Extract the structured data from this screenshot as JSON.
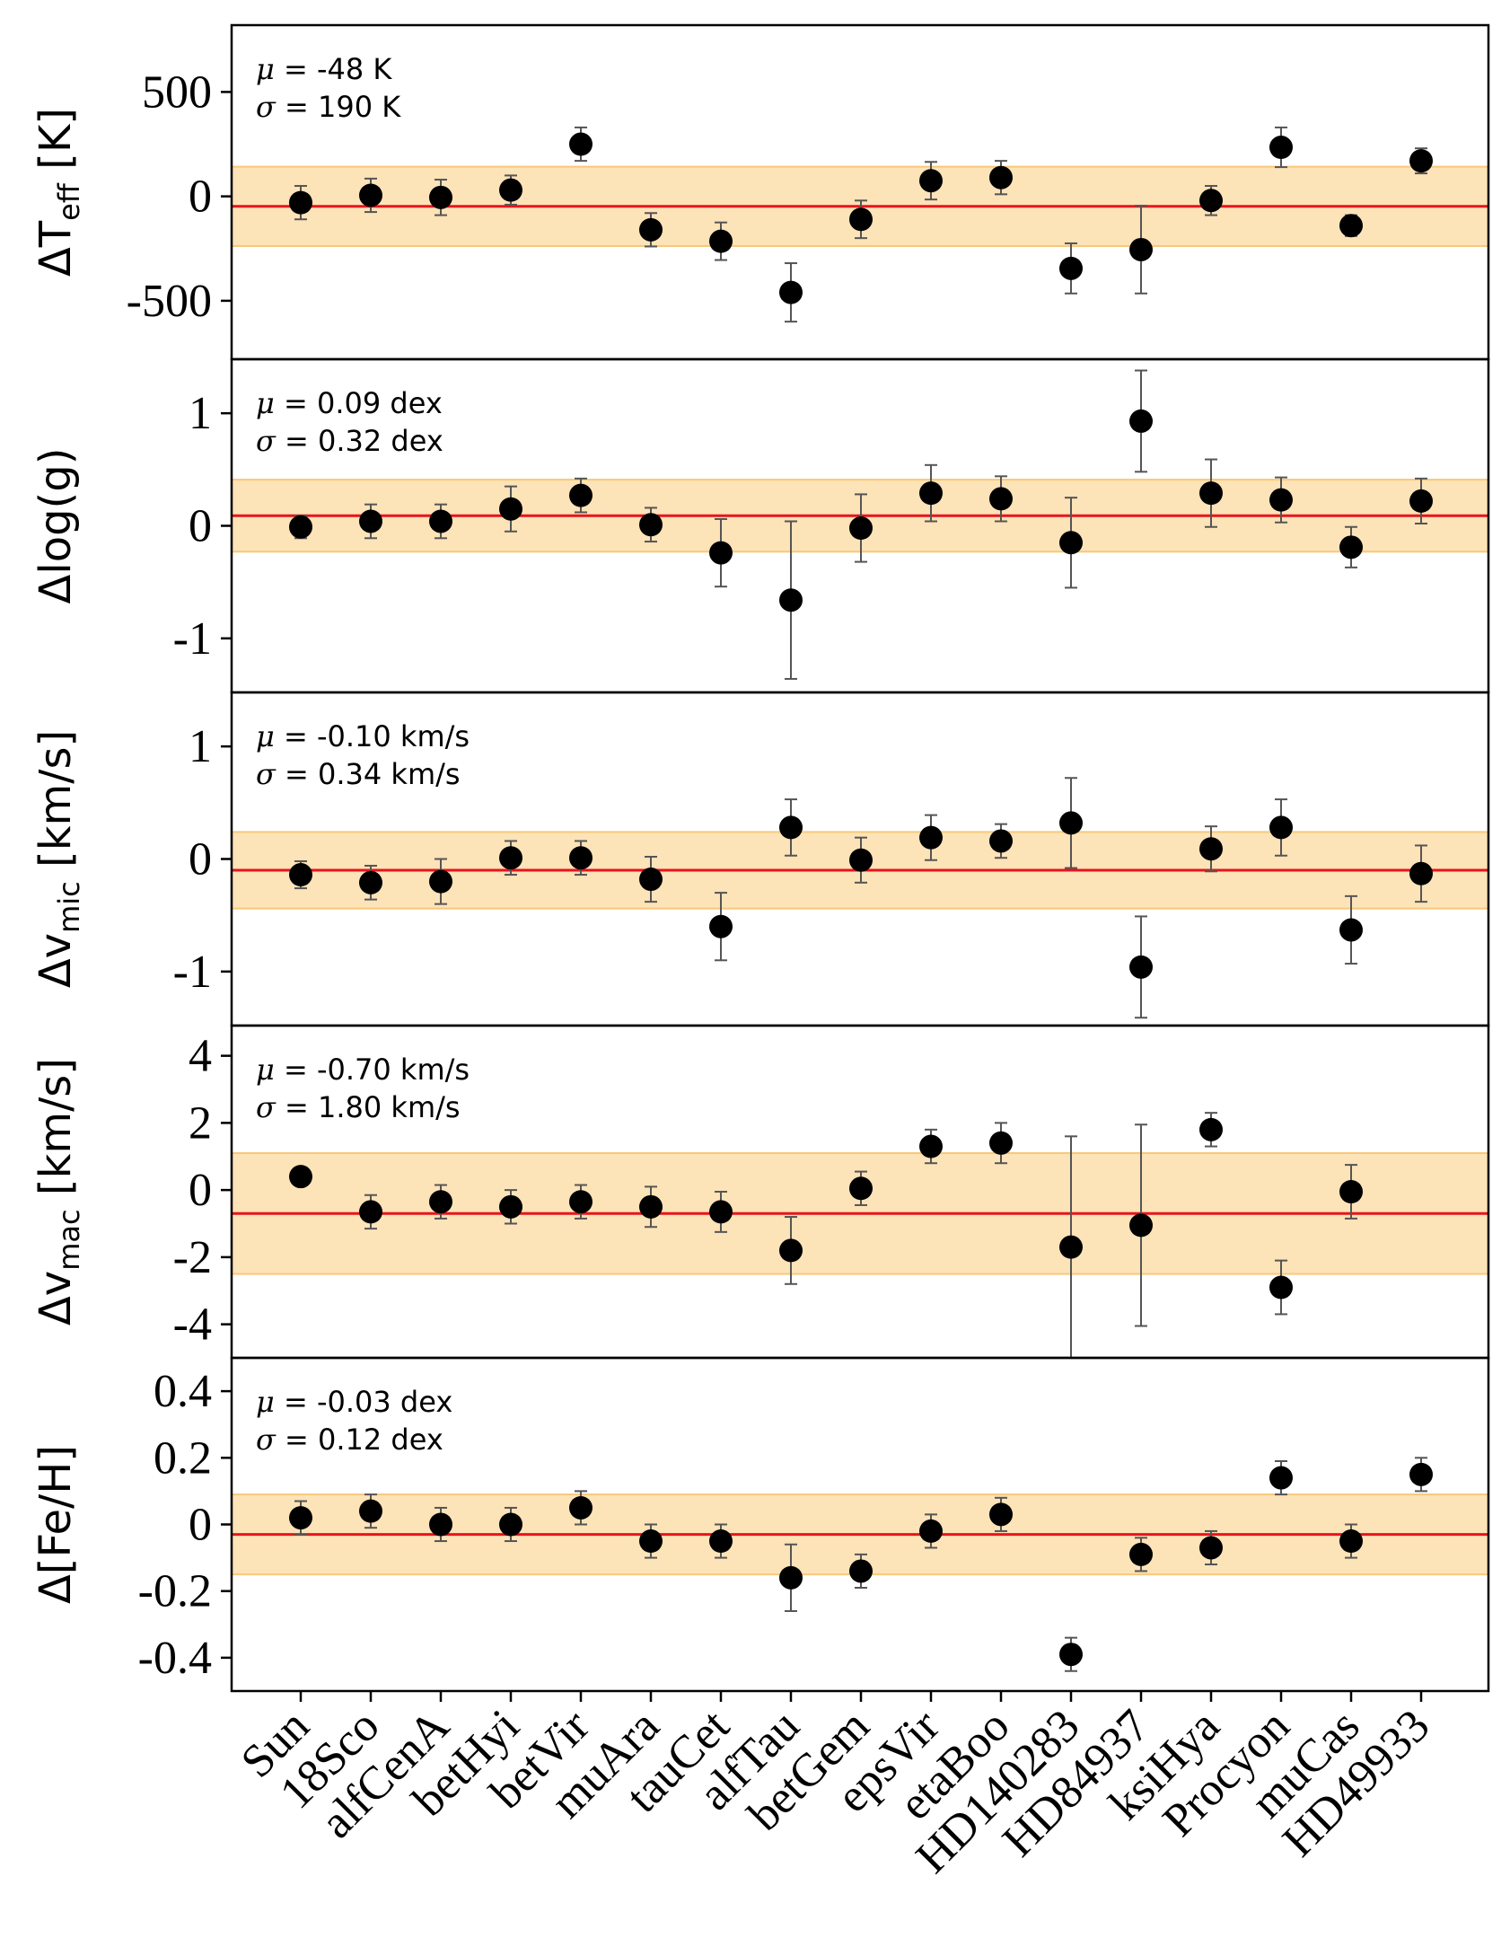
{
  "chart_data": {
    "type": "scatter",
    "categories": [
      "Sun",
      "18Sco",
      "alfCenA",
      "betHyi",
      "betVir",
      "muAra",
      "tauCet",
      "alfTau",
      "betGem",
      "epsVir",
      "etaBoo",
      "HD140283",
      "HD84937",
      "ksiHya",
      "Procyon",
      "muCas",
      "HD49933"
    ],
    "colors": {
      "marker": "#000000",
      "mean_line": "#e8141c",
      "band_fill": "#fde3b8",
      "band_edge": "#f8c879",
      "errorbar": "#555555"
    },
    "marker": "filled-circle",
    "grid": false,
    "panels": [
      {
        "ylabel_main": "ΔT",
        "ylabel_sub": "eff",
        "ylabel_tail": " [K]",
        "ylim": [
          -780,
          820
        ],
        "yticks": [
          500,
          0,
          -500
        ],
        "ytick_labels": [
          "500",
          "0",
          "-500"
        ],
        "mean": -48,
        "sigma": 190,
        "mu_value": "-48 K",
        "sigma_value": "190 K",
        "values": [
          -30,
          5,
          -5,
          30,
          250,
          -160,
          -215,
          -460,
          -110,
          75,
          90,
          -345,
          -255,
          -20,
          235,
          -140,
          170
        ],
        "errors": [
          80,
          80,
          85,
          70,
          80,
          80,
          90,
          140,
          90,
          90,
          80,
          120,
          210,
          70,
          95,
          50,
          60
        ]
      },
      {
        "ylabel_main": "Δlog(g)",
        "ylabel_sub": "",
        "ylabel_tail": "",
        "ylim": [
          -1.48,
          1.48
        ],
        "yticks": [
          1,
          0,
          -1
        ],
        "ytick_labels": [
          "1",
          "0",
          "-1"
        ],
        "mean": 0.09,
        "sigma": 0.32,
        "mu_value": "0.09 dex",
        "sigma_value": "0.32 dex",
        "values": [
          -0.01,
          0.04,
          0.04,
          0.15,
          0.27,
          0.01,
          -0.24,
          -0.66,
          -0.02,
          0.29,
          0.24,
          -0.15,
          0.93,
          0.29,
          0.23,
          -0.19,
          0.22
        ],
        "errors": [
          0.1,
          0.15,
          0.15,
          0.2,
          0.15,
          0.15,
          0.3,
          0.7,
          0.3,
          0.25,
          0.2,
          0.4,
          0.45,
          0.3,
          0.2,
          0.18,
          0.2
        ]
      },
      {
        "ylabel_main": "Δv",
        "ylabel_sub": "mic",
        "ylabel_tail": " [km/s]",
        "ylim": [
          -1.48,
          1.48
        ],
        "yticks": [
          1,
          0,
          -1
        ],
        "ytick_labels": [
          "1",
          "0",
          "-1"
        ],
        "mean": -0.1,
        "sigma": 0.34,
        "mu_value": "-0.10 km/s",
        "sigma_value": "0.34 km/s",
        "values": [
          -0.14,
          -0.21,
          -0.2,
          0.01,
          0.01,
          -0.18,
          -0.6,
          0.28,
          -0.01,
          0.19,
          0.16,
          0.32,
          -0.96,
          0.09,
          0.28,
          -0.63,
          -0.13
        ],
        "errors": [
          0.12,
          0.15,
          0.2,
          0.15,
          0.15,
          0.2,
          0.3,
          0.25,
          0.2,
          0.2,
          0.15,
          0.4,
          0.45,
          0.2,
          0.25,
          0.3,
          0.25
        ]
      },
      {
        "ylabel_main": "Δv",
        "ylabel_sub": "mac",
        "ylabel_tail": " [km/s]",
        "ylim": [
          -5.0,
          4.9
        ],
        "yticks": [
          4,
          2,
          0,
          -2,
          -4
        ],
        "ytick_labels": [
          "4",
          "2",
          "0",
          "-2",
          "-4"
        ],
        "mean": -0.7,
        "sigma": 1.8,
        "mu_value": "-0.70 km/s",
        "sigma_value": "1.80 km/s",
        "values": [
          0.4,
          -0.65,
          -0.35,
          -0.5,
          -0.35,
          -0.5,
          -0.65,
          -1.8,
          0.05,
          1.3,
          1.4,
          -1.7,
          -1.05,
          1.8,
          -2.9,
          -0.05,
          null
        ],
        "errors": [
          0.2,
          0.5,
          0.5,
          0.5,
          0.5,
          0.6,
          0.6,
          1.0,
          0.5,
          0.5,
          0.6,
          3.3,
          3.0,
          0.5,
          0.8,
          0.8,
          null
        ]
      },
      {
        "ylabel_main": "Δ[Fe/H]",
        "ylabel_sub": "",
        "ylabel_tail": "",
        "ylim": [
          -0.5,
          0.5
        ],
        "yticks": [
          0.4,
          0.2,
          0,
          -0.2,
          -0.4
        ],
        "ytick_labels": [
          "0.4",
          "0.2",
          "0",
          "-0.2",
          "-0.4"
        ],
        "mean": -0.03,
        "sigma": 0.12,
        "mu_value": "-0.03 dex",
        "sigma_value": "0.12 dex",
        "values": [
          0.02,
          0.04,
          0.0,
          0.0,
          0.05,
          -0.05,
          -0.05,
          -0.16,
          -0.14,
          -0.02,
          0.03,
          -0.39,
          -0.09,
          -0.07,
          0.14,
          -0.05,
          0.15
        ],
        "errors": [
          0.05,
          0.05,
          0.05,
          0.05,
          0.05,
          0.05,
          0.05,
          0.1,
          0.05,
          0.05,
          0.05,
          0.05,
          0.05,
          0.05,
          0.05,
          0.05,
          0.05
        ]
      }
    ]
  }
}
